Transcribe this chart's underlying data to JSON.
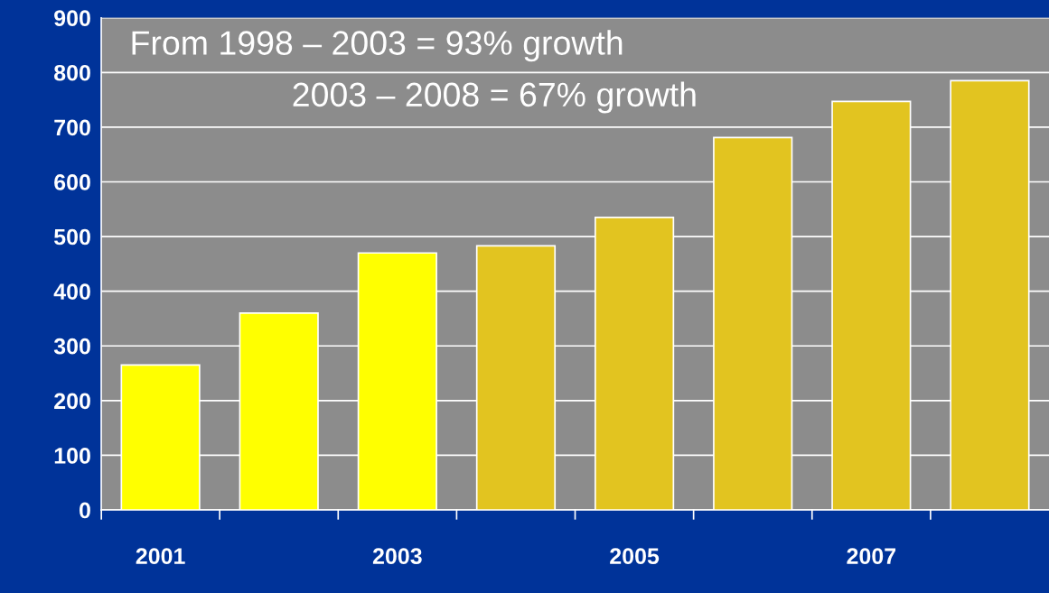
{
  "chart_data": {
    "type": "bar",
    "categories": [
      "2001",
      null,
      "2003",
      null,
      "2005",
      null,
      "2007",
      null
    ],
    "values": [
      265,
      360,
      470,
      483,
      535,
      681,
      747,
      785
    ],
    "colors": [
      "#ffff00",
      "#ffff00",
      "#ffff00",
      "#e2c420",
      "#e2c420",
      "#e2c420",
      "#e2c420",
      "#e2c420"
    ],
    "ylim": [
      0,
      900
    ],
    "yticks": [
      0,
      100,
      200,
      300,
      400,
      500,
      600,
      700,
      800,
      900
    ],
    "grid": "y",
    "annotations": [
      "From 1998 – 2003 = 93% growth",
      "2003 – 2008 = 67% growth"
    ]
  }
}
